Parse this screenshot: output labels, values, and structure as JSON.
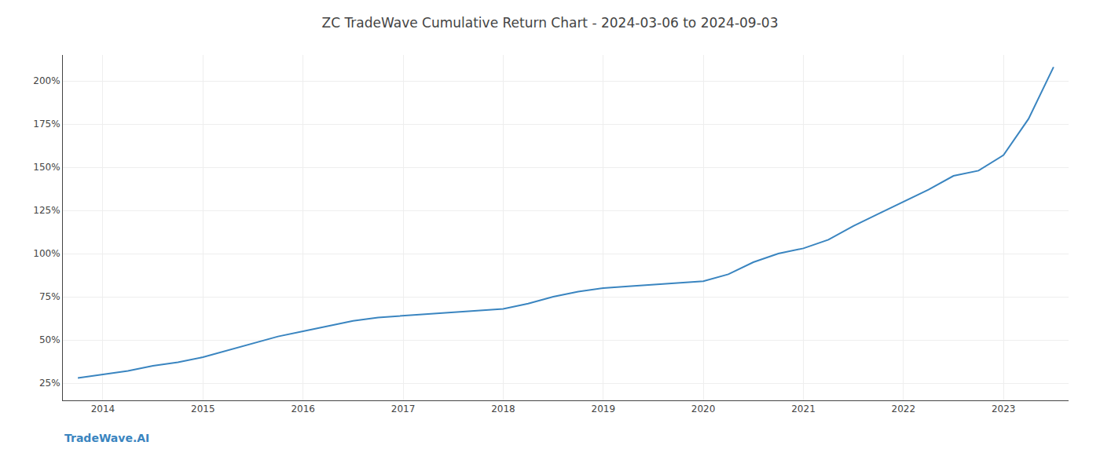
{
  "chart_data": {
    "type": "line",
    "title": "ZC TradeWave Cumulative Return Chart - 2024-03-06 to 2024-09-03",
    "annotations": [
      {
        "text": "TradeWave.AI",
        "color": "#3a85c0"
      }
    ],
    "x": [
      2013.75,
      2014.0,
      2014.25,
      2014.5,
      2014.75,
      2015.0,
      2015.25,
      2015.5,
      2015.75,
      2016.0,
      2016.25,
      2016.5,
      2016.75,
      2017.0,
      2017.25,
      2017.5,
      2017.75,
      2018.0,
      2018.25,
      2018.5,
      2018.75,
      2019.0,
      2019.25,
      2019.5,
      2019.75,
      2020.0,
      2020.25,
      2020.5,
      2020.75,
      2021.0,
      2021.25,
      2021.5,
      2021.75,
      2022.0,
      2022.25,
      2022.5,
      2022.75,
      2023.0,
      2023.25,
      2023.5
    ],
    "values": [
      28,
      30,
      32,
      35,
      37,
      40,
      44,
      48,
      52,
      55,
      58,
      61,
      63,
      64,
      65,
      66,
      67,
      68,
      71,
      75,
      78,
      80,
      81,
      82,
      83,
      84,
      88,
      95,
      100,
      103,
      108,
      116,
      123,
      130,
      137,
      145,
      148,
      157,
      178,
      208
    ],
    "color": "#3a85c0",
    "xlim": [
      2013.6,
      2023.65
    ],
    "xticks": [
      2014,
      2015,
      2016,
      2017,
      2018,
      2019,
      2020,
      2021,
      2022,
      2023
    ],
    "ylim": [
      15,
      215
    ],
    "yticks": [
      {
        "value": 25,
        "label": "25%"
      },
      {
        "value": 50,
        "label": "50%"
      },
      {
        "value": 75,
        "label": "75%"
      },
      {
        "value": 100,
        "label": "100%"
      },
      {
        "value": 125,
        "label": "125%"
      },
      {
        "value": 150,
        "label": "150%"
      },
      {
        "value": 175,
        "label": "175%"
      },
      {
        "value": 200,
        "label": "200%"
      }
    ],
    "grid": true
  }
}
